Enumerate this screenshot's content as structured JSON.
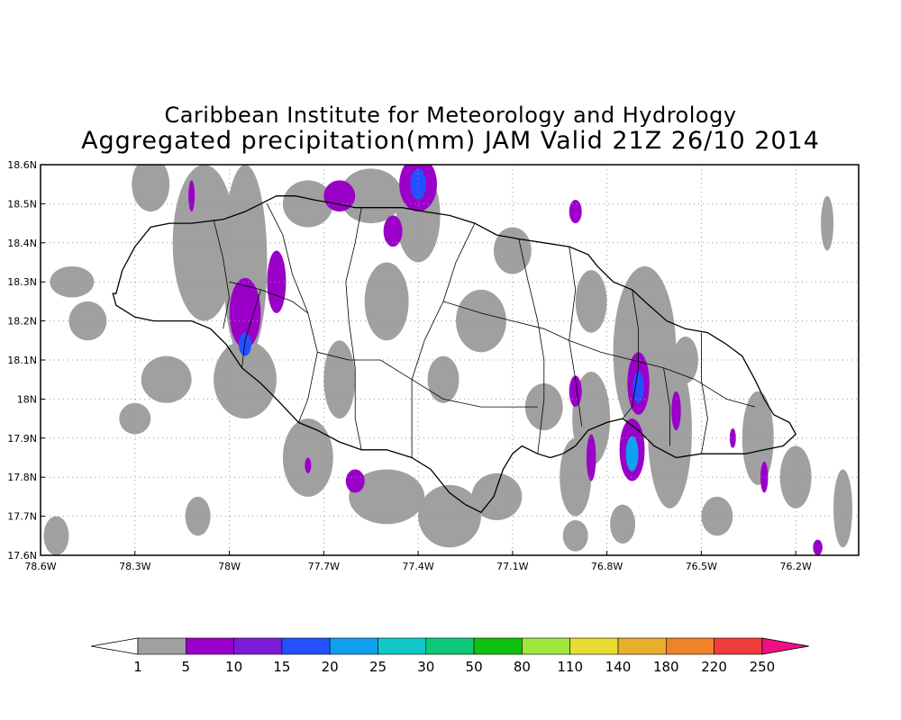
{
  "title_line1": "Caribbean Institute for Meteorology and Hydrology",
  "title_line2": "Aggregated precipitation(mm) JAM Valid 21Z 26/10 2014",
  "map": {
    "lon_range": [
      -78.6,
      -76.0
    ],
    "lat_range": [
      17.6,
      18.6
    ],
    "grid": "dotted",
    "x_ticks": [
      {
        "lon": -78.6,
        "label": "78.6W"
      },
      {
        "lon": -78.3,
        "label": "78.3W"
      },
      {
        "lon": -78.0,
        "label": "78W"
      },
      {
        "lon": -77.7,
        "label": "77.7W"
      },
      {
        "lon": -77.4,
        "label": "77.4W"
      },
      {
        "lon": -77.1,
        "label": "77.1W"
      },
      {
        "lon": -76.8,
        "label": "76.8W"
      },
      {
        "lon": -76.5,
        "label": "76.5W"
      },
      {
        "lon": -76.2,
        "label": "76.2W"
      }
    ],
    "y_ticks": [
      {
        "lat": 18.6,
        "label": "18.6N"
      },
      {
        "lat": 18.5,
        "label": "18.5N"
      },
      {
        "lat": 18.4,
        "label": "18.4N"
      },
      {
        "lat": 18.3,
        "label": "18.3N"
      },
      {
        "lat": 18.2,
        "label": "18.2N"
      },
      {
        "lat": 18.1,
        "label": "18.1N"
      },
      {
        "lat": 18.0,
        "label": "18N"
      },
      {
        "lat": 17.9,
        "label": "17.9N"
      },
      {
        "lat": 17.8,
        "label": "17.8N"
      },
      {
        "lat": 17.7,
        "label": "17.7N"
      },
      {
        "lat": 17.6,
        "label": "17.6N"
      }
    ],
    "coastline": [
      [
        -78.36,
        18.27
      ],
      [
        -78.34,
        18.33
      ],
      [
        -78.3,
        18.39
      ],
      [
        -78.25,
        18.44
      ],
      [
        -78.19,
        18.45
      ],
      [
        -78.12,
        18.45
      ],
      [
        -78.02,
        18.46
      ],
      [
        -77.95,
        18.48
      ],
      [
        -77.9,
        18.5
      ],
      [
        -77.85,
        18.52
      ],
      [
        -77.79,
        18.52
      ],
      [
        -77.73,
        18.51
      ],
      [
        -77.66,
        18.5
      ],
      [
        -77.6,
        18.49
      ],
      [
        -77.52,
        18.49
      ],
      [
        -77.45,
        18.49
      ],
      [
        -77.38,
        18.48
      ],
      [
        -77.3,
        18.47
      ],
      [
        -77.22,
        18.45
      ],
      [
        -77.15,
        18.42
      ],
      [
        -77.08,
        18.41
      ],
      [
        -77.0,
        18.4
      ],
      [
        -76.92,
        18.39
      ],
      [
        -76.86,
        18.37
      ],
      [
        -76.83,
        18.34
      ],
      [
        -76.78,
        18.3
      ],
      [
        -76.72,
        18.28
      ],
      [
        -76.68,
        18.25
      ],
      [
        -76.61,
        18.2
      ],
      [
        -76.55,
        18.18
      ],
      [
        -76.48,
        18.17
      ],
      [
        -76.42,
        18.14
      ],
      [
        -76.37,
        18.11
      ],
      [
        -76.33,
        18.05
      ],
      [
        -76.3,
        18.0
      ],
      [
        -76.27,
        17.96
      ],
      [
        -76.22,
        17.94
      ],
      [
        -76.2,
        17.91
      ],
      [
        -76.24,
        17.88
      ],
      [
        -76.3,
        17.87
      ],
      [
        -76.36,
        17.86
      ],
      [
        -76.42,
        17.86
      ],
      [
        -76.5,
        17.86
      ],
      [
        -76.58,
        17.85
      ],
      [
        -76.65,
        17.88
      ],
      [
        -76.7,
        17.92
      ],
      [
        -76.75,
        17.95
      ],
      [
        -76.8,
        17.94
      ],
      [
        -76.86,
        17.92
      ],
      [
        -76.9,
        17.88
      ],
      [
        -76.94,
        17.86
      ],
      [
        -76.98,
        17.85
      ],
      [
        -77.02,
        17.86
      ],
      [
        -77.07,
        17.88
      ],
      [
        -77.1,
        17.86
      ],
      [
        -77.13,
        17.82
      ],
      [
        -77.16,
        17.75
      ],
      [
        -77.2,
        17.71
      ],
      [
        -77.25,
        17.73
      ],
      [
        -77.3,
        17.76
      ],
      [
        -77.36,
        17.82
      ],
      [
        -77.42,
        17.85
      ],
      [
        -77.5,
        17.87
      ],
      [
        -77.58,
        17.87
      ],
      [
        -77.65,
        17.89
      ],
      [
        -77.72,
        17.92
      ],
      [
        -77.78,
        17.94
      ],
      [
        -77.85,
        18.0
      ],
      [
        -77.9,
        18.04
      ],
      [
        -77.96,
        18.08
      ],
      [
        -78.01,
        18.14
      ],
      [
        -78.06,
        18.18
      ],
      [
        -78.12,
        18.2
      ],
      [
        -78.18,
        18.2
      ],
      [
        -78.24,
        18.2
      ],
      [
        -78.3,
        18.21
      ],
      [
        -78.36,
        18.24
      ],
      [
        -78.37,
        18.27
      ]
    ],
    "parish_lines": [
      [
        [
          -78.05,
          18.46
        ],
        [
          -78.02,
          18.36
        ],
        [
          -78.0,
          18.26
        ],
        [
          -78.02,
          18.18
        ]
      ],
      [
        [
          -78.0,
          18.3
        ],
        [
          -77.9,
          18.28
        ],
        [
          -77.8,
          18.25
        ],
        [
          -77.75,
          18.22
        ]
      ],
      [
        [
          -77.88,
          18.5
        ],
        [
          -77.83,
          18.42
        ],
        [
          -77.8,
          18.32
        ],
        [
          -77.75,
          18.22
        ],
        [
          -77.72,
          18.12
        ],
        [
          -77.75,
          18.0
        ],
        [
          -77.78,
          17.94
        ]
      ],
      [
        [
          -77.58,
          18.49
        ],
        [
          -77.6,
          18.4
        ],
        [
          -77.63,
          18.3
        ],
        [
          -77.62,
          18.2
        ],
        [
          -77.6,
          18.08
        ],
        [
          -77.6,
          17.95
        ],
        [
          -77.58,
          17.87
        ]
      ],
      [
        [
          -77.22,
          18.45
        ],
        [
          -77.28,
          18.35
        ],
        [
          -77.32,
          18.25
        ],
        [
          -77.38,
          18.15
        ],
        [
          -77.42,
          18.05
        ],
        [
          -77.42,
          17.95
        ],
        [
          -77.42,
          17.85
        ]
      ],
      [
        [
          -77.32,
          18.25
        ],
        [
          -77.2,
          18.22
        ],
        [
          -77.1,
          18.2
        ],
        [
          -77.0,
          18.18
        ],
        [
          -76.92,
          18.15
        ]
      ],
      [
        [
          -77.08,
          18.41
        ],
        [
          -77.05,
          18.3
        ],
        [
          -77.02,
          18.2
        ],
        [
          -77.0,
          18.1
        ],
        [
          -77.0,
          18.0
        ],
        [
          -77.02,
          17.86
        ]
      ],
      [
        [
          -76.92,
          18.39
        ],
        [
          -76.9,
          18.28
        ],
        [
          -76.92,
          18.15
        ],
        [
          -76.9,
          18.05
        ],
        [
          -76.88,
          17.93
        ]
      ],
      [
        [
          -76.92,
          18.15
        ],
        [
          -76.82,
          18.12
        ],
        [
          -76.72,
          18.1
        ],
        [
          -76.62,
          18.08
        ],
        [
          -76.52,
          18.05
        ],
        [
          -76.42,
          18.0
        ],
        [
          -76.33,
          17.98
        ]
      ],
      [
        [
          -76.72,
          18.28
        ],
        [
          -76.7,
          18.18
        ],
        [
          -76.7,
          18.08
        ],
        [
          -76.72,
          17.98
        ],
        [
          -76.75,
          17.95
        ]
      ],
      [
        [
          -76.5,
          18.17
        ],
        [
          -76.5,
          18.05
        ],
        [
          -76.48,
          17.95
        ],
        [
          -76.5,
          17.86
        ]
      ],
      [
        [
          -76.62,
          18.08
        ],
        [
          -76.6,
          17.98
        ],
        [
          -76.6,
          17.88
        ]
      ],
      [
        [
          -77.9,
          18.28
        ],
        [
          -77.95,
          18.15
        ],
        [
          -77.96,
          18.08
        ]
      ],
      [
        [
          -77.42,
          18.05
        ],
        [
          -77.32,
          18.0
        ],
        [
          -77.2,
          17.98
        ],
        [
          -77.1,
          17.98
        ],
        [
          -77.02,
          17.98
        ]
      ],
      [
        [
          -77.72,
          18.12
        ],
        [
          -77.62,
          18.1
        ],
        [
          -77.52,
          18.1
        ],
        [
          -77.42,
          18.05
        ]
      ]
    ],
    "gray_patches": [
      [
        -78.25,
        18.55,
        0.06,
        0.07
      ],
      [
        -78.08,
        18.4,
        0.1,
        0.2
      ],
      [
        -77.95,
        18.35,
        0.07,
        0.25
      ],
      [
        -77.75,
        18.5,
        0.08,
        0.06
      ],
      [
        -77.55,
        18.52,
        0.1,
        0.07
      ],
      [
        -77.4,
        18.47,
        0.07,
        0.12
      ],
      [
        -77.5,
        18.25,
        0.07,
        0.1
      ],
      [
        -77.2,
        18.2,
        0.08,
        0.08
      ],
      [
        -77.1,
        18.38,
        0.06,
        0.06
      ],
      [
        -76.85,
        18.25,
        0.05,
        0.08
      ],
      [
        -76.68,
        18.12,
        0.1,
        0.22
      ],
      [
        -76.6,
        17.92,
        0.07,
        0.2
      ],
      [
        -76.85,
        17.95,
        0.06,
        0.12
      ],
      [
        -76.9,
        17.8,
        0.05,
        0.1
      ],
      [
        -77.0,
        17.98,
        0.06,
        0.06
      ],
      [
        -77.15,
        17.75,
        0.08,
        0.06
      ],
      [
        -77.3,
        17.7,
        0.1,
        0.08
      ],
      [
        -77.5,
        17.75,
        0.12,
        0.07
      ],
      [
        -77.75,
        17.85,
        0.08,
        0.1
      ],
      [
        -77.95,
        18.05,
        0.1,
        0.1
      ],
      [
        -78.2,
        18.05,
        0.08,
        0.06
      ],
      [
        -78.45,
        18.2,
        0.06,
        0.05
      ],
      [
        -78.5,
        18.3,
        0.07,
        0.04
      ],
      [
        -78.3,
        17.95,
        0.05,
        0.04
      ],
      [
        -76.32,
        17.9,
        0.05,
        0.12
      ],
      [
        -76.2,
        17.8,
        0.05,
        0.08
      ],
      [
        -76.1,
        18.45,
        0.02,
        0.07
      ],
      [
        -76.05,
        17.72,
        0.03,
        0.1
      ],
      [
        -77.32,
        18.05,
        0.05,
        0.06
      ],
      [
        -76.45,
        17.7,
        0.05,
        0.05
      ],
      [
        -78.55,
        17.65,
        0.04,
        0.05
      ],
      [
        -76.55,
        18.1,
        0.04,
        0.06
      ],
      [
        -77.65,
        18.05,
        0.05,
        0.1
      ],
      [
        -78.1,
        17.7,
        0.04,
        0.05
      ],
      [
        -76.9,
        17.65,
        0.04,
        0.04
      ],
      [
        -76.75,
        17.68,
        0.04,
        0.05
      ]
    ],
    "rain_cells": [
      [
        -77.95,
        18.22,
        0.05,
        0.09,
        "#9a00c8"
      ],
      [
        -77.85,
        18.3,
        0.03,
        0.08,
        "#9a00c8"
      ],
      [
        -77.4,
        18.55,
        0.06,
        0.07,
        "#9a00c8"
      ],
      [
        -77.4,
        18.55,
        0.025,
        0.04,
        "#2450ff"
      ],
      [
        -77.65,
        18.52,
        0.05,
        0.04,
        "#9a00c8"
      ],
      [
        -77.48,
        18.43,
        0.03,
        0.04,
        "#9a00c8"
      ],
      [
        -76.7,
        18.04,
        0.035,
        0.08,
        "#9a00c8"
      ],
      [
        -76.7,
        18.03,
        0.018,
        0.04,
        "#2450ff"
      ],
      [
        -76.72,
        17.87,
        0.04,
        0.08,
        "#9a00c8"
      ],
      [
        -76.72,
        17.86,
        0.02,
        0.045,
        "#0fa0f0"
      ],
      [
        -76.9,
        18.02,
        0.02,
        0.04,
        "#9a00c8"
      ],
      [
        -76.85,
        17.85,
        0.015,
        0.06,
        "#9a00c8"
      ],
      [
        -77.6,
        17.79,
        0.03,
        0.03,
        "#9a00c8"
      ],
      [
        -76.58,
        17.97,
        0.015,
        0.05,
        "#9a00c8"
      ],
      [
        -76.3,
        17.8,
        0.012,
        0.04,
        "#9a00c8"
      ],
      [
        -76.13,
        17.62,
        0.015,
        0.02,
        "#9a00c8"
      ],
      [
        -76.4,
        17.9,
        0.01,
        0.025,
        "#9a00c8"
      ],
      [
        -76.9,
        18.48,
        0.02,
        0.03,
        "#9a00c8"
      ],
      [
        -78.12,
        18.52,
        0.01,
        0.04,
        "#9a00c8"
      ],
      [
        -77.75,
        17.83,
        0.01,
        0.02,
        "#9a00c8"
      ],
      [
        -77.95,
        18.14,
        0.02,
        0.03,
        "#2450ff"
      ]
    ]
  },
  "colorbar": {
    "labels": [
      "1",
      "5",
      "10",
      "15",
      "20",
      "25",
      "30",
      "50",
      "80",
      "110",
      "140",
      "180",
      "220",
      "250"
    ],
    "colors": [
      "#a0a0a0",
      "#9a00c8",
      "#7c1cd8",
      "#2450ff",
      "#0fa0f0",
      "#10c8c8",
      "#10c878",
      "#10c010",
      "#a0e63c",
      "#e6dc32",
      "#e6af2d",
      "#f08228",
      "#f03c3c",
      "#f00f82"
    ],
    "under_color": "#ffffff",
    "over_color": "#f00f82"
  }
}
